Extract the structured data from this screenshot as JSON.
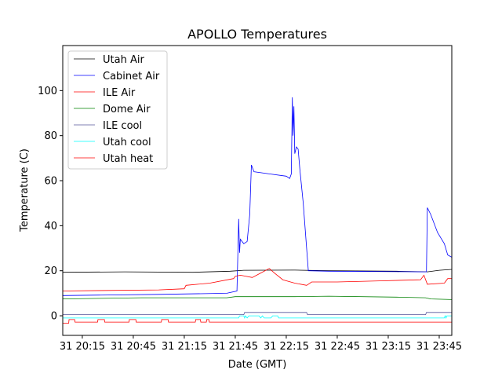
{
  "chart_data": {
    "type": "line",
    "title": "APOLLO Temperatures",
    "xlabel": "Date (GMT)",
    "ylabel": "Temperature (C)",
    "x_units": "minutes after 31 20:00 GMT",
    "xlim": [
      3.5,
      232.4
    ],
    "ylim": [
      -8.7,
      120
    ],
    "grid": false,
    "legend_placement": "top-left",
    "xticks": [
      {
        "value": 15,
        "label": "31 20:15"
      },
      {
        "value": 45,
        "label": "31 20:45"
      },
      {
        "value": 75,
        "label": "31 21:15"
      },
      {
        "value": 105,
        "label": "31 21:45"
      },
      {
        "value": 135,
        "label": "31 22:15"
      },
      {
        "value": 165,
        "label": "31 22:45"
      },
      {
        "value": 195,
        "label": "31 23:15"
      },
      {
        "value": 225,
        "label": "31 23:45"
      }
    ],
    "yticks": [
      {
        "value": 0,
        "label": "0"
      },
      {
        "value": 20,
        "label": "20"
      },
      {
        "value": 40,
        "label": "40"
      },
      {
        "value": 60,
        "label": "60"
      },
      {
        "value": 80,
        "label": "80"
      },
      {
        "value": 100,
        "label": "100"
      }
    ],
    "series": [
      {
        "name": "Utah Air",
        "color": "#000000",
        "points": [
          [
            3.5,
            19.3
          ],
          [
            40,
            19.5
          ],
          [
            80,
            19.3
          ],
          [
            102,
            19.8
          ],
          [
            110,
            20.2
          ],
          [
            140,
            20.3
          ],
          [
            160,
            20
          ],
          [
            200,
            19.8
          ],
          [
            218,
            19.5
          ],
          [
            225,
            20.2
          ],
          [
            232.4,
            20.6
          ]
        ]
      },
      {
        "name": "Cabinet Air",
        "color": "#0000ff",
        "points": [
          [
            3.5,
            9
          ],
          [
            60,
            9.5
          ],
          [
            100,
            10
          ],
          [
            106,
            11
          ],
          [
            107,
            43
          ],
          [
            107.5,
            28
          ],
          [
            108,
            34
          ],
          [
            110,
            32
          ],
          [
            112,
            33
          ],
          [
            113.5,
            45
          ],
          [
            114.5,
            67
          ],
          [
            116,
            64
          ],
          [
            125,
            63
          ],
          [
            135,
            62
          ],
          [
            137,
            61
          ],
          [
            138,
            63
          ],
          [
            138.6,
            97
          ],
          [
            139,
            80
          ],
          [
            139.5,
            93
          ],
          [
            140,
            72
          ],
          [
            141,
            75
          ],
          [
            142,
            74
          ],
          [
            143,
            65
          ],
          [
            145,
            50
          ],
          [
            147,
            30
          ],
          [
            148,
            20
          ],
          [
            160,
            19.8
          ],
          [
            200,
            19.6
          ],
          [
            217.5,
            19.5
          ],
          [
            218,
            48
          ],
          [
            220,
            45
          ],
          [
            224,
            37
          ],
          [
            228,
            32
          ],
          [
            230,
            27
          ],
          [
            232.4,
            26
          ]
        ]
      },
      {
        "name": "ILE Air",
        "color": "#ff0000",
        "points": [
          [
            3.5,
            11
          ],
          [
            60,
            11.5
          ],
          [
            75,
            12
          ],
          [
            76,
            13.5
          ],
          [
            90,
            14.5
          ],
          [
            104,
            16.5
          ],
          [
            105,
            17.5
          ],
          [
            108,
            18
          ],
          [
            115,
            17
          ],
          [
            120,
            19
          ],
          [
            125,
            21
          ],
          [
            128,
            19
          ],
          [
            133,
            16
          ],
          [
            140,
            14.5
          ],
          [
            147,
            13.5
          ],
          [
            150,
            15
          ],
          [
            165,
            15
          ],
          [
            190,
            15.5
          ],
          [
            214,
            16
          ],
          [
            216,
            18
          ],
          [
            218,
            14
          ],
          [
            228,
            14.5
          ],
          [
            230,
            16.5
          ],
          [
            232.4,
            16.5
          ]
        ]
      },
      {
        "name": "Dome Air",
        "color": "#008000",
        "points": [
          [
            3.5,
            7.5
          ],
          [
            50,
            8
          ],
          [
            100,
            8
          ],
          [
            105,
            8.5
          ],
          [
            140,
            8.5
          ],
          [
            160,
            8.7
          ],
          [
            200,
            8.3
          ],
          [
            217,
            8
          ],
          [
            220,
            7.5
          ],
          [
            232.4,
            7.2
          ]
        ]
      },
      {
        "name": "ILE cool",
        "color": "#55559a",
        "points": [
          [
            3.5,
            0.5
          ],
          [
            110,
            0.5
          ],
          [
            110.5,
            1.5
          ],
          [
            147,
            1.5
          ],
          [
            147.5,
            0.5
          ],
          [
            217,
            0.5
          ],
          [
            217.5,
            1.5
          ],
          [
            232.4,
            1.5
          ]
        ]
      },
      {
        "name": "Utah cool",
        "color": "#00ffff",
        "points": [
          [
            3.5,
            -1
          ],
          [
            107,
            -1
          ],
          [
            107.5,
            0
          ],
          [
            110,
            0
          ],
          [
            110.5,
            -1
          ],
          [
            111,
            0
          ],
          [
            112,
            -1
          ],
          [
            113,
            0
          ],
          [
            119,
            0
          ],
          [
            120,
            -1
          ],
          [
            121,
            0
          ],
          [
            122,
            -1
          ],
          [
            126,
            -1
          ],
          [
            127,
            0
          ],
          [
            130,
            0
          ],
          [
            130.5,
            -1
          ],
          [
            228,
            -1
          ],
          [
            228.5,
            0
          ],
          [
            229,
            -1
          ],
          [
            229.5,
            0
          ],
          [
            232.4,
            0
          ]
        ]
      },
      {
        "name": "Utah heat",
        "color": "#ff0000",
        "points": [
          [
            3.5,
            -3.3
          ],
          [
            7,
            -3.3
          ],
          [
            7.2,
            -1.7
          ],
          [
            10.5,
            -1.7
          ],
          [
            10.7,
            -2.8
          ],
          [
            24,
            -2.8
          ],
          [
            24.2,
            -1.7
          ],
          [
            28,
            -1.7
          ],
          [
            28.2,
            -2.8
          ],
          [
            42.5,
            -2.8
          ],
          [
            42.7,
            -1.7
          ],
          [
            46.5,
            -1.7
          ],
          [
            46.7,
            -2.8
          ],
          [
            61.5,
            -2.8
          ],
          [
            61.7,
            -1.7
          ],
          [
            65.5,
            -1.7
          ],
          [
            65.7,
            -2.8
          ],
          [
            81.5,
            -2.8
          ],
          [
            81.7,
            -1.7
          ],
          [
            84.5,
            -1.7
          ],
          [
            84.7,
            -2.8
          ],
          [
            88,
            -2.8
          ],
          [
            88.2,
            -1.7
          ],
          [
            89.5,
            -1.7
          ],
          [
            89.7,
            -2.8
          ],
          [
            232.4,
            -2.8
          ]
        ]
      }
    ]
  }
}
